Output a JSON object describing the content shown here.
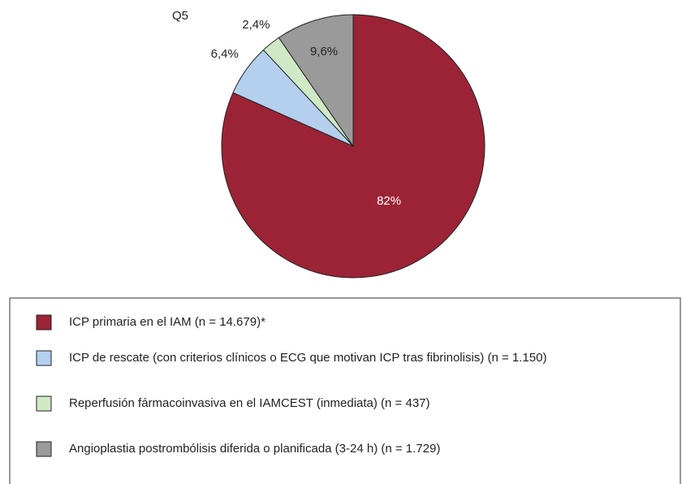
{
  "chart_data": {
    "type": "pie",
    "title": "Q5",
    "categories": [
      "ICP primaria en el IAM (n = 14.679)*",
      "ICP de rescate (con criterios clínicos o ECG que motivan ICP tras fibrinolisis) (n = 1.150)",
      "Reperfusión fármacoinvasiva en el IAMCEST (inmediata) (n = 437)",
      "Angioplastia postrombólisis diferida o planificada (3-24 h) (n = 1.729)"
    ],
    "values": [
      82,
      6.4,
      2.4,
      9.6
    ],
    "value_labels": [
      "82%",
      "6,4%",
      "2,4%",
      "9,6%"
    ],
    "colors": [
      "#9b2335",
      "#b5d0ef",
      "#cfe9c6",
      "#9a9a9a"
    ]
  }
}
